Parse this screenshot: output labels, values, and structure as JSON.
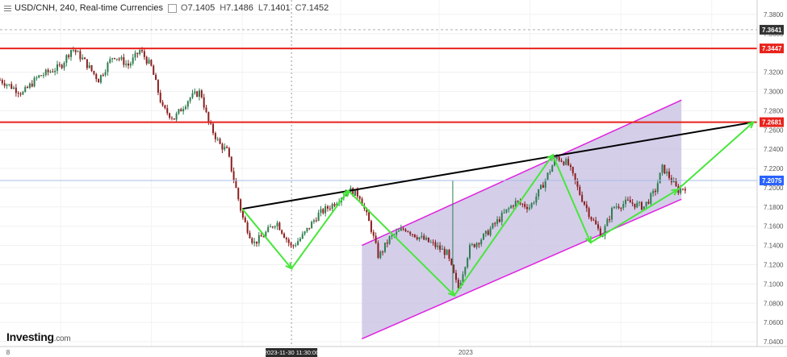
{
  "header": {
    "symbol": "USD/CNH, 240, Real-time Currencies",
    "ohlc": [
      {
        "k": "O",
        "v": "7.1405"
      },
      {
        "k": "H",
        "v": "7.1486"
      },
      {
        "k": "L",
        "v": "7.1401"
      },
      {
        "k": "C",
        "v": "7.1452"
      }
    ]
  },
  "logo": {
    "main": "Investing",
    "suffix": ".com"
  },
  "colors": {
    "up": "#2e7d4f",
    "down": "#8b1e1e",
    "resistance": "#e8231c",
    "trendline": "#000000",
    "channel": "#e020e0",
    "channel_fill": "#c9c2e3",
    "zigzag": "#47e63a",
    "price_tag": "#2962ff",
    "axis_bg": "#ffffff",
    "dark_tag": "#333333"
  },
  "chart_data": {
    "type": "candlestick",
    "title": "USD/CNH, 240, Real-time Currencies",
    "y_axis": {
      "ticks": [
        "7.3800",
        "7.3600",
        "7.3200",
        "7.3000",
        "7.2800",
        "7.2600",
        "7.2400",
        "7.2200",
        "7.2000",
        "7.1800",
        "7.1600",
        "7.1400",
        "7.1200",
        "7.1000",
        "7.0800",
        "7.0600",
        "7.0400"
      ],
      "tick_values": [
        7.38,
        7.36,
        7.32,
        7.3,
        7.28,
        7.26,
        7.24,
        7.22,
        7.2,
        7.18,
        7.16,
        7.14,
        7.12,
        7.1,
        7.08,
        7.06,
        7.04
      ],
      "range": [
        7.035,
        7.395
      ]
    },
    "x_axis": {
      "labels": [
        "8",
        "2023",
        "2023-11-30 11:30:00"
      ],
      "label_pos": [
        0.0,
        0.615,
        0.385
      ]
    },
    "price_tags": [
      {
        "label": "7.3641",
        "value": 7.3641,
        "style": "dark"
      },
      {
        "label": "7.3447",
        "value": 7.3447,
        "style": "red"
      },
      {
        "label": "7.2681",
        "value": 7.2681,
        "style": "red"
      },
      {
        "label": "7.2075",
        "value": 7.2075,
        "style": "blue"
      }
    ],
    "horizontal_lines": [
      {
        "value": 7.3447,
        "style": "resistance"
      },
      {
        "value": 7.2681,
        "style": "resistance"
      },
      {
        "value": 7.2075,
        "style": "price"
      },
      {
        "value": 7.3641,
        "style": "dashed"
      }
    ],
    "path_points": [
      [
        0.0,
        7.312
      ],
      [
        0.03,
        7.298
      ],
      [
        0.05,
        7.315
      ],
      [
        0.08,
        7.326
      ],
      [
        0.095,
        7.345
      ],
      [
        0.11,
        7.333
      ],
      [
        0.13,
        7.312
      ],
      [
        0.15,
        7.338
      ],
      [
        0.17,
        7.327
      ],
      [
        0.185,
        7.343
      ],
      [
        0.2,
        7.325
      ],
      [
        0.215,
        7.282
      ],
      [
        0.23,
        7.272
      ],
      [
        0.25,
        7.293
      ],
      [
        0.265,
        7.3
      ],
      [
        0.275,
        7.268
      ],
      [
        0.29,
        7.245
      ],
      [
        0.3,
        7.238
      ],
      [
        0.31,
        7.205
      ],
      [
        0.32,
        7.17
      ],
      [
        0.335,
        7.142
      ],
      [
        0.35,
        7.152
      ],
      [
        0.365,
        7.165
      ],
      [
        0.385,
        7.138
      ],
      [
        0.4,
        7.15
      ],
      [
        0.42,
        7.172
      ],
      [
        0.44,
        7.183
      ],
      [
        0.46,
        7.198
      ],
      [
        0.475,
        7.192
      ],
      [
        0.49,
        7.158
      ],
      [
        0.5,
        7.128
      ],
      [
        0.515,
        7.148
      ],
      [
        0.535,
        7.158
      ],
      [
        0.55,
        7.15
      ],
      [
        0.57,
        7.142
      ],
      [
        0.59,
        7.132
      ],
      [
        0.605,
        7.095
      ],
      [
        0.62,
        7.137
      ],
      [
        0.64,
        7.15
      ],
      [
        0.66,
        7.168
      ],
      [
        0.68,
        7.185
      ],
      [
        0.7,
        7.18
      ],
      [
        0.715,
        7.2
      ],
      [
        0.735,
        7.232
      ],
      [
        0.75,
        7.225
      ],
      [
        0.765,
        7.195
      ],
      [
        0.78,
        7.17
      ],
      [
        0.795,
        7.15
      ],
      [
        0.81,
        7.18
      ],
      [
        0.83,
        7.185
      ],
      [
        0.85,
        7.18
      ],
      [
        0.865,
        7.196
      ],
      [
        0.875,
        7.221
      ],
      [
        0.885,
        7.21
      ],
      [
        0.895,
        7.197
      ],
      [
        0.905,
        7.201
      ]
    ],
    "channel": {
      "lower": [
        [
          0.478,
          7.043
        ],
        [
          0.9,
          7.188
        ]
      ],
      "upper": [
        [
          0.478,
          7.14
        ],
        [
          0.9,
          7.291
        ]
      ]
    },
    "trendline": [
      [
        0.32,
        7.178
      ],
      [
        0.995,
        7.268
      ]
    ],
    "zigzag": [
      [
        0.32,
        7.178
      ],
      [
        0.385,
        7.116
      ],
      [
        0.46,
        7.197
      ],
      [
        0.6,
        7.088
      ],
      [
        0.73,
        7.234
      ],
      [
        0.78,
        7.143
      ],
      [
        0.895,
        7.198
      ],
      [
        0.995,
        7.268
      ]
    ],
    "markers": {
      "vertical_dotted_x": 0.385,
      "crosshair_price": 7.2075
    }
  }
}
